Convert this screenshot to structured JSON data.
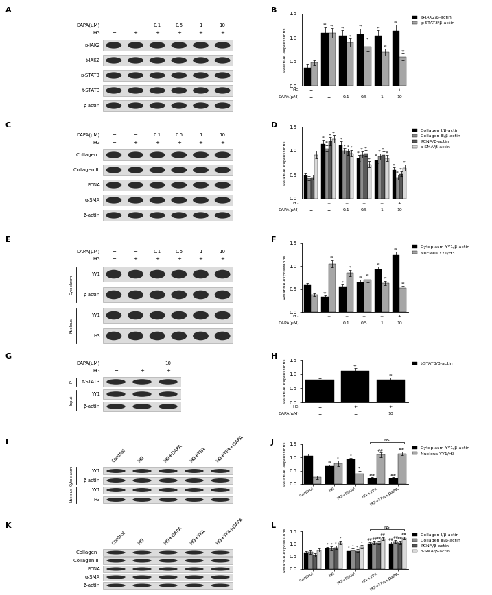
{
  "chart_data": [
    {
      "panel": "B",
      "type": "bar",
      "y_label": "Relative expressions",
      "ylim": [
        0,
        1.5
      ],
      "yticks": [
        {
          "value": 0,
          "label": "0.0"
        },
        {
          "value": 0.5,
          "label": "0.5"
        },
        {
          "value": 1,
          "label": "1.0"
        },
        {
          "value": 1.5,
          "label": "1.5"
        }
      ],
      "x_rows": [
        {
          "label": "HG",
          "values": [
            "−",
            "+",
            "+",
            "+",
            "+",
            "+"
          ]
        },
        {
          "label": "DAPA(μM)",
          "values": [
            "−",
            "−",
            "0.1",
            "0.5",
            "1",
            "10"
          ]
        }
      ],
      "legend": "upper right",
      "series": [
        {
          "name": "p-JAK2/β-actin",
          "color": "#000000",
          "values": [
            0.37,
            1.1,
            1.05,
            1.07,
            1.05,
            1.15
          ],
          "errors": [
            0.08,
            0.12,
            0.1,
            0.12,
            0.1,
            0.12
          ],
          "significance": [
            null,
            "**",
            "**",
            "**",
            "**",
            "**"
          ]
        },
        {
          "name": "p-STAT3/β-actin",
          "color": "#a6a6a6",
          "values": [
            0.48,
            1.1,
            0.9,
            0.82,
            0.7,
            0.6
          ],
          "errors": [
            0.05,
            0.1,
            0.08,
            0.1,
            0.07,
            0.07
          ],
          "significance": [
            null,
            "**",
            "*",
            "*",
            "**",
            "**"
          ]
        }
      ]
    },
    {
      "panel": "D",
      "type": "bar",
      "y_label": "Relative expressions",
      "ylim": [
        0,
        1.5
      ],
      "yticks": [
        {
          "value": 0,
          "label": "0.0"
        },
        {
          "value": 0.5,
          "label": "0.5"
        },
        {
          "value": 1,
          "label": "1.0"
        },
        {
          "value": 1.5,
          "label": "1.5"
        }
      ],
      "x_rows": [
        {
          "label": "HG",
          "values": [
            "−",
            "+",
            "+",
            "+",
            "+",
            "+"
          ]
        },
        {
          "label": "DAPA(μM)",
          "values": [
            "−",
            "−",
            "0.1",
            "0.5",
            "1",
            "10"
          ]
        }
      ],
      "legend": "upper right",
      "series": [
        {
          "name": "Collagen Ⅰ/β-actin",
          "color": "#000000",
          "values": [
            0.48,
            1.15,
            1.12,
            0.85,
            0.8,
            0.6
          ],
          "errors": [
            0.05,
            0.08,
            0.08,
            0.06,
            0.06,
            0.06
          ],
          "significance": [
            null,
            "**",
            "*",
            "**",
            "**",
            "**"
          ]
        },
        {
          "name": "Collagen Ⅲ/β-actin",
          "color": "#8c8c8c",
          "values": [
            0.43,
            1.05,
            1.0,
            0.92,
            0.88,
            0.45
          ],
          "errors": [
            0.04,
            0.07,
            0.06,
            0.06,
            0.06,
            0.05
          ],
          "significance": [
            null,
            "**",
            "*",
            "**",
            "**",
            "**"
          ]
        },
        {
          "name": "PCNA/β-actin",
          "color": "#595959",
          "values": [
            0.45,
            1.2,
            0.98,
            0.95,
            0.92,
            0.52
          ],
          "errors": [
            0.05,
            0.08,
            0.06,
            0.06,
            0.06,
            0.05
          ],
          "significance": [
            null,
            "**",
            "*",
            "**",
            "**",
            "**"
          ]
        },
        {
          "name": "α-SMA/β-actin",
          "color": "#d9d9d9",
          "values": [
            0.92,
            1.25,
            0.95,
            0.72,
            0.85,
            0.65
          ],
          "errors": [
            0.08,
            0.08,
            0.07,
            0.06,
            0.06,
            0.06
          ],
          "significance": [
            null,
            "**",
            "*",
            "**",
            "**",
            "**"
          ]
        }
      ]
    },
    {
      "panel": "F",
      "type": "bar",
      "y_label": "Relative expressions",
      "ylim": [
        0,
        1.5
      ],
      "yticks": [
        {
          "value": 0,
          "label": "0.0"
        },
        {
          "value": 0.5,
          "label": "0.5"
        },
        {
          "value": 1,
          "label": "1.0"
        },
        {
          "value": 1.5,
          "label": "1.5"
        }
      ],
      "x_rows": [
        {
          "label": "HG",
          "values": [
            "−",
            "+",
            "+",
            "+",
            "+",
            "+"
          ]
        },
        {
          "label": "DAPA(μM)",
          "values": [
            "−",
            "−",
            "0.1",
            "0.5",
            "1",
            "10"
          ]
        }
      ],
      "legend": "upper right",
      "series": [
        {
          "name": "Cytoplasm YY1/β-actin",
          "color": "#000000",
          "values": [
            0.58,
            0.33,
            0.55,
            0.65,
            0.93,
            1.25
          ],
          "errors": [
            0.05,
            0.03,
            0.05,
            0.05,
            0.06,
            0.07
          ],
          "significance": [
            null,
            "**",
            "*",
            "**",
            "**",
            "**"
          ]
        },
        {
          "name": "Nucleus YY1/H3",
          "color": "#a6a6a6",
          "values": [
            0.38,
            1.05,
            0.85,
            0.7,
            0.63,
            0.52
          ],
          "errors": [
            0.03,
            0.08,
            0.07,
            0.05,
            0.05,
            0.05
          ],
          "significance": [
            null,
            "**",
            "*",
            "**",
            "**",
            "**"
          ]
        }
      ]
    },
    {
      "panel": "H",
      "type": "bar",
      "y_label": "Relative expressions",
      "ylim": [
        0,
        1.5
      ],
      "yticks": [
        {
          "value": 0,
          "label": "0.0"
        },
        {
          "value": 0.5,
          "label": "0.5"
        },
        {
          "value": 1,
          "label": "1.0"
        },
        {
          "value": 1.5,
          "label": "1.5"
        }
      ],
      "x_rows": [
        {
          "label": "HG",
          "values": [
            "−",
            "+",
            "+"
          ]
        },
        {
          "label": "DAPA(μM)",
          "values": [
            "−",
            "−",
            "10"
          ]
        }
      ],
      "legend": "upper right",
      "series": [
        {
          "name": "t-STAT3/β-actin",
          "color": "#000000",
          "values": [
            0.8,
            1.12,
            0.8
          ],
          "errors": [
            0.05,
            0.08,
            0.06
          ],
          "significance": [
            null,
            "**",
            "**"
          ]
        }
      ]
    },
    {
      "panel": "J",
      "type": "bar",
      "y_label": "Relative expressions",
      "ylim": [
        0,
        1.5
      ],
      "yticks": [
        {
          "value": 0,
          "label": "0.0"
        },
        {
          "value": 0.5,
          "label": "0.5"
        },
        {
          "value": 1,
          "label": "1.0"
        },
        {
          "value": 1.5,
          "label": "1.5"
        }
      ],
      "categories": [
        "Control",
        "HG",
        "HG+DAPA",
        "HG+TFA",
        "HG+TFA+DAPA"
      ],
      "legend": "upper right",
      "annotations": [
        {
          "text": "NS",
          "between": [
            "HG+TFA",
            "HG+TFA+DAPA"
          ]
        }
      ],
      "series": [
        {
          "name": "Cytoplasm YY1/β-actin",
          "color": "#000000",
          "values": [
            1.05,
            0.67,
            0.92,
            0.2,
            0.2
          ],
          "errors": [
            0.08,
            0.05,
            0.05,
            0.05,
            0.05
          ],
          "significance": [
            null,
            "**",
            "*",
            "##",
            "##"
          ]
        },
        {
          "name": "Nucleus YY1/H3",
          "color": "#a6a6a6",
          "values": [
            0.25,
            0.78,
            0.4,
            1.1,
            1.15
          ],
          "errors": [
            0.07,
            0.1,
            0.1,
            0.08,
            0.07
          ],
          "significance": [
            null,
            "*",
            "*",
            "##",
            "##"
          ]
        }
      ]
    },
    {
      "panel": "L",
      "type": "bar",
      "y_label": "Relative expressions",
      "ylim": [
        0,
        1.5
      ],
      "yticks": [
        {
          "value": 0,
          "label": "0.0"
        },
        {
          "value": 0.5,
          "label": "0.5"
        },
        {
          "value": 1,
          "label": "1.0"
        },
        {
          "value": 1.5,
          "label": "1.5"
        }
      ],
      "categories": [
        "Control",
        "HG",
        "HG+DAPA",
        "HG+TFA",
        "HG+TFA+DAPA"
      ],
      "legend": "upper right",
      "annotations": [
        {
          "text": "NS",
          "between": [
            "HG+TFA",
            "HG+TFA+DAPA"
          ]
        }
      ],
      "series": [
        {
          "name": "Collagen Ⅰ/β-actin",
          "color": "#000000",
          "values": [
            0.62,
            0.82,
            0.72,
            1.0,
            1.02
          ],
          "errors": [
            0.08,
            0.06,
            0.05,
            0.06,
            0.06
          ],
          "significance": [
            null,
            "*",
            "*",
            "##",
            "##"
          ]
        },
        {
          "name": "Collagen Ⅲ/β-actin",
          "color": "#8c8c8c",
          "values": [
            0.68,
            0.82,
            0.75,
            1.05,
            1.1
          ],
          "errors": [
            0.07,
            0.07,
            0.06,
            0.06,
            0.05
          ],
          "significance": [
            null,
            "*",
            "*",
            "##",
            "##"
          ]
        },
        {
          "name": "PCNA/β-actin",
          "color": "#595959",
          "values": [
            0.55,
            0.85,
            0.72,
            1.05,
            1.05
          ],
          "errors": [
            0.07,
            0.07,
            0.06,
            0.07,
            0.07
          ],
          "significance": [
            null,
            "*",
            "*",
            "##",
            "##"
          ]
        },
        {
          "name": "α-SMA/β-actin",
          "color": "#d9d9d9",
          "values": [
            0.75,
            1.05,
            0.88,
            1.2,
            1.22
          ],
          "errors": [
            0.08,
            0.08,
            0.07,
            0.06,
            0.06
          ],
          "significance": [
            null,
            "*",
            "*",
            "##",
            "##"
          ]
        }
      ]
    }
  ],
  "blots": [
    {
      "panel": "A",
      "header_rows": [
        {
          "label": "DAPA(μM)",
          "values": [
            "−",
            "−",
            "0.1",
            "0.5",
            "1",
            "10"
          ]
        },
        {
          "label": "HG",
          "values": [
            "−",
            "+",
            "+",
            "+",
            "+",
            "+"
          ]
        }
      ],
      "groups": [
        {
          "rows": [
            "p-JAK2",
            "t-JAK2",
            "p-STAT3",
            "t-STAT3",
            "β-actin"
          ]
        }
      ]
    },
    {
      "panel": "C",
      "header_rows": [
        {
          "label": "DAPA(μM)",
          "values": [
            "−",
            "−",
            "0.1",
            "0.5",
            "1",
            "10"
          ]
        },
        {
          "label": "HG",
          "values": [
            "−",
            "+",
            "+",
            "+",
            "+",
            "+"
          ]
        }
      ],
      "groups": [
        {
          "rows": [
            "Collagen I",
            "Collagen III",
            "PCNA",
            "α-SMA",
            "β-actin"
          ]
        }
      ]
    },
    {
      "panel": "E",
      "header_rows": [
        {
          "label": "DAPA(μM)",
          "values": [
            "−",
            "−",
            "0.1",
            "0.5",
            "1",
            "10"
          ]
        },
        {
          "label": "HG",
          "values": [
            "−",
            "+",
            "+",
            "+",
            "+",
            "+"
          ]
        }
      ],
      "groups": [
        {
          "label": "Cytoplasm",
          "rows": [
            "YY1",
            "β-actin"
          ]
        },
        {
          "label": "Nucleus",
          "rows": [
            "YY1",
            "H3"
          ]
        }
      ]
    },
    {
      "panel": "G",
      "header_rows": [
        {
          "label": "DAPA(μM)",
          "values": [
            "−",
            "−",
            "10"
          ]
        },
        {
          "label": "HG",
          "values": [
            "−",
            "+",
            "+"
          ]
        }
      ],
      "groups": [
        {
          "label": "IP",
          "rows": [
            "t-STAT3"
          ]
        },
        {
          "label": "Input",
          "rows": [
            "YY1",
            "β-actin"
          ]
        }
      ]
    },
    {
      "panel": "I",
      "column_labels": [
        "Control",
        "HG",
        "HG+DAPA",
        "HG+TFA",
        "HG+TFA+DAPA"
      ],
      "groups": [
        {
          "label": "Cytoplasm",
          "rows": [
            "YY1",
            "β-actin"
          ]
        },
        {
          "label": "Nucleus",
          "rows": [
            "YY1",
            "H3"
          ]
        }
      ]
    },
    {
      "panel": "K",
      "column_labels": [
        "Control",
        "HG",
        "HG+DAPA",
        "HG+TFA",
        "HG+TFA+DAPA"
      ],
      "groups": [
        {
          "rows": [
            "Collagen I",
            "Collagen III",
            "PCNA",
            "α-SMA",
            "β-actin"
          ]
        }
      ]
    }
  ]
}
